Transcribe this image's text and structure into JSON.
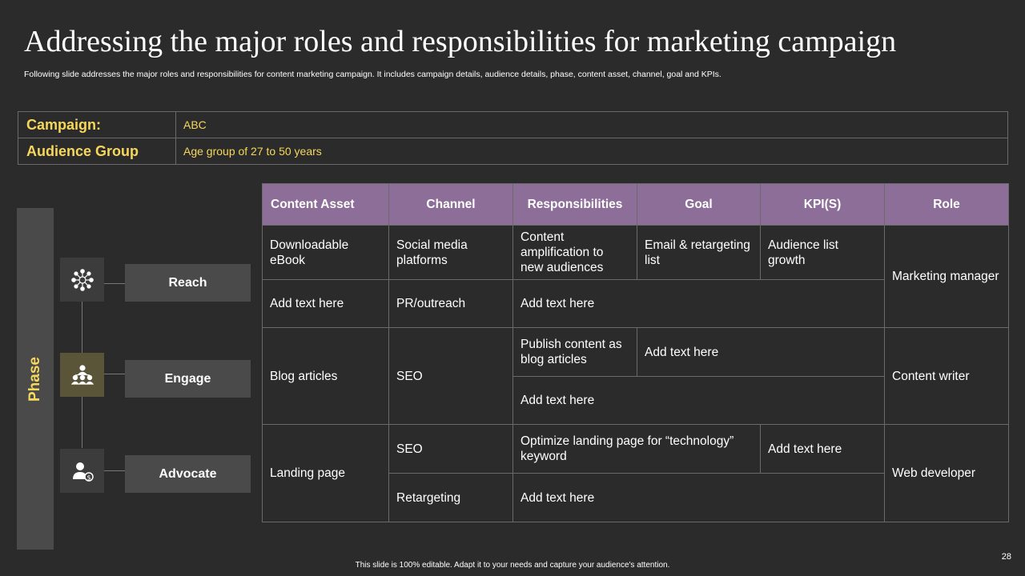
{
  "title": "Addressing the major roles and responsibilities for marketing campaign",
  "subtitle": "Following slide addresses the major roles and responsibilities for content marketing campaign. It includes campaign details, audience details, phase, content asset, channel, goal and KPIs.",
  "info": {
    "campaign_label": "Campaign:",
    "campaign_value": "ABC",
    "audience_label": "Audience Group",
    "audience_value": "Age group of 27 to 50 years"
  },
  "phase": {
    "label": "Phase",
    "stages": [
      "Reach",
      "Engage",
      "Advocate"
    ],
    "icons": [
      "network-icon",
      "team-icon",
      "user-advocate-icon"
    ]
  },
  "table": {
    "headers": [
      "Content Asset",
      "Channel",
      "Responsibilities",
      "Goal",
      "KPI(S)",
      "Role"
    ],
    "r1": {
      "asset": "Downloadable eBook",
      "channel": "Social media platforms",
      "resp": "Content amplification to new audiences",
      "goal": "Email & retargeting list",
      "kpi": "Audience list growth",
      "role": "Marketing manager"
    },
    "r2": {
      "asset": "Add text here",
      "channel": "PR/outreach",
      "resp": "Add text here"
    },
    "r3": {
      "asset": "Blog articles",
      "channel": "SEO",
      "resp": "Publish content as blog articles",
      "goal": "Add text here",
      "role": "Content writer"
    },
    "r4": {
      "resp": "Add text here"
    },
    "r5": {
      "asset": "Landing page",
      "channel": "SEO",
      "resp": "Optimize landing page for “technology” keyword",
      "kpi": "Add text here",
      "role": "Web developer"
    },
    "r6": {
      "channel": "Retargeting",
      "resp": "Add text here"
    }
  },
  "footer": "This slide is 100% editable. Adapt it to your needs and capture your audience's attention.",
  "page_number": "28",
  "colors": {
    "accent_yellow": "#f5d75b",
    "header_purple": "#8c6e98",
    "background": "#2b2b2b"
  }
}
